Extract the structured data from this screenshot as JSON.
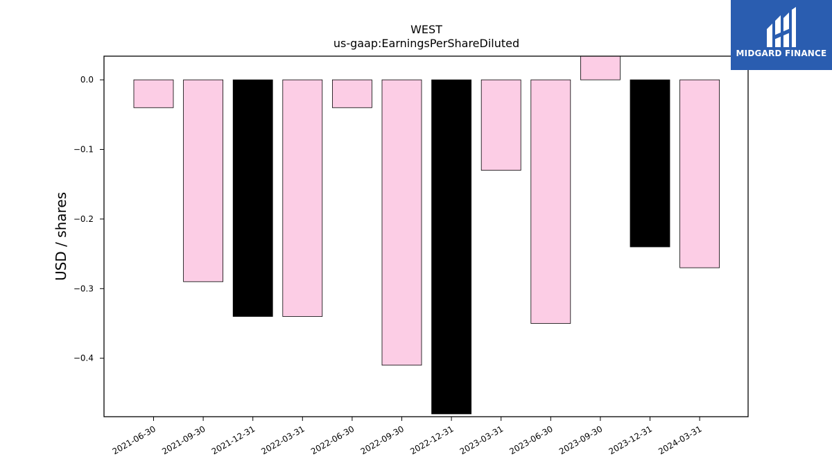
{
  "brand": {
    "name": "MIDGARD FINANCE",
    "color": "#2a5db0"
  },
  "chart_data": {
    "type": "bar",
    "title": "WEST",
    "subtitle": "us-gaap:EarningsPerShareDiluted",
    "xlabel": "",
    "ylabel": "USD / shares",
    "categories": [
      "2021-06-30",
      "2021-09-30",
      "2021-12-31",
      "2022-03-31",
      "2022-06-30",
      "2022-09-30",
      "2022-12-31",
      "2023-03-31",
      "2023-06-30",
      "2023-09-30",
      "2023-12-31",
      "2024-03-31"
    ],
    "values": [
      -0.04,
      -0.29,
      -0.34,
      -0.34,
      -0.04,
      -0.41,
      -0.48,
      -0.13,
      -0.35,
      0.04,
      -0.24,
      -0.27
    ],
    "bar_colors": [
      "#fccde5",
      "#fccde5",
      "#000000",
      "#fccde5",
      "#fccde5",
      "#fccde5",
      "#000000",
      "#fccde5",
      "#fccde5",
      "#fccde5",
      "#000000",
      "#fccde5"
    ],
    "ylim": [
      -0.484,
      0.034
    ],
    "yticks": [
      0.0,
      -0.1,
      -0.2,
      -0.3,
      -0.4
    ],
    "ytick_labels": [
      "0.0",
      "−0.1",
      "−0.2",
      "−0.3",
      "−0.4"
    ],
    "grid": false,
    "legend": "none"
  }
}
